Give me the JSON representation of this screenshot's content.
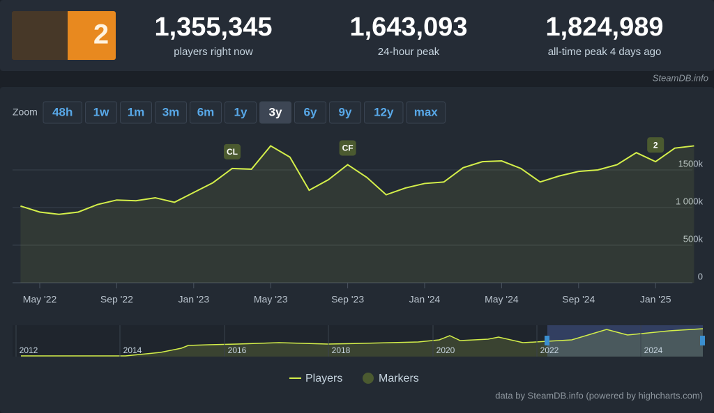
{
  "header": {
    "stats": [
      {
        "value": "1,355,345",
        "label": "players right now"
      },
      {
        "value": "1,643,093",
        "label": "24-hour peak"
      },
      {
        "value": "1,824,989",
        "label": "all-time peak 4 days ago"
      }
    ],
    "source": "SteamDB.info"
  },
  "zoom": {
    "label": "Zoom",
    "buttons": [
      "48h",
      "1w",
      "1m",
      "3m",
      "6m",
      "1y",
      "3y",
      "6y",
      "9y",
      "12y",
      "max"
    ],
    "active": "3y"
  },
  "chart_data": {
    "type": "line",
    "x": [
      "2022-04",
      "2022-05",
      "2022-06",
      "2022-07",
      "2022-08",
      "2022-09",
      "2022-10",
      "2022-11",
      "2022-12",
      "2023-01",
      "2023-02",
      "2023-03",
      "2023-04",
      "2023-05",
      "2023-06",
      "2023-07",
      "2023-08",
      "2023-09",
      "2023-10",
      "2023-11",
      "2023-12",
      "2024-01",
      "2024-02",
      "2024-03",
      "2024-04",
      "2024-05",
      "2024-06",
      "2024-07",
      "2024-08",
      "2024-09",
      "2024-10",
      "2024-11",
      "2024-12",
      "2025-01",
      "2025-02",
      "2025-03"
    ],
    "series": [
      {
        "name": "Players",
        "color": "#d4ef4a",
        "values": [
          1020000,
          940000,
          910000,
          940000,
          1040000,
          1100000,
          1090000,
          1130000,
          1070000,
          1200000,
          1330000,
          1520000,
          1510000,
          1820000,
          1670000,
          1230000,
          1370000,
          1570000,
          1400000,
          1170000,
          1260000,
          1320000,
          1340000,
          1530000,
          1610000,
          1620000,
          1520000,
          1340000,
          1420000,
          1480000,
          1500000,
          1570000,
          1730000,
          1610000,
          1790000,
          1820000
        ]
      }
    ],
    "markers": {
      "name": "Markers",
      "color": "#4b5a30",
      "items": [
        {
          "label": "CL",
          "x": "2023-03"
        },
        {
          "label": "CF",
          "x": "2023-09"
        },
        {
          "label": "2",
          "x": "2025-01"
        }
      ]
    },
    "ylim": [
      0,
      2000000
    ],
    "yticks": [
      {
        "value": 0,
        "label": "0"
      },
      {
        "value": 500000,
        "label": "500k"
      },
      {
        "value": 1000000,
        "label": "1 000k"
      },
      {
        "value": 1500000,
        "label": "1500k"
      }
    ],
    "xticks": [
      {
        "value": "2022-05",
        "label": "May '22"
      },
      {
        "value": "2022-09",
        "label": "Sep '22"
      },
      {
        "value": "2023-01",
        "label": "Jan '23"
      },
      {
        "value": "2023-05",
        "label": "May '23"
      },
      {
        "value": "2023-09",
        "label": "Sep '23"
      },
      {
        "value": "2024-01",
        "label": "Jan '24"
      },
      {
        "value": "2024-05",
        "label": "May '24"
      },
      {
        "value": "2024-09",
        "label": "Sep '24"
      },
      {
        "value": "2025-01",
        "label": "Jan '25"
      }
    ],
    "grid": true,
    "navigator_years": [
      "2012",
      "2014",
      "2016",
      "2018",
      "2020",
      "2022",
      "2024"
    ]
  },
  "footer": "data by SteamDB.info (powered by highcharts.com)"
}
